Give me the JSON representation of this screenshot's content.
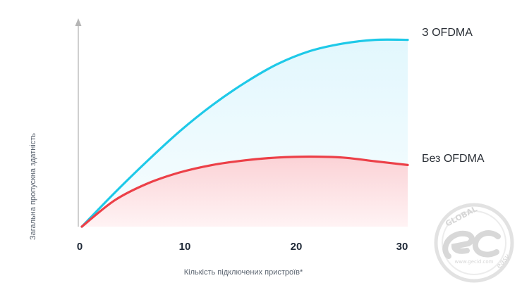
{
  "chart_data": {
    "type": "area",
    "x": [
      0,
      3,
      6,
      9,
      12,
      15,
      18,
      21,
      24,
      27,
      30
    ],
    "series": [
      {
        "name": "З OFDMA",
        "color": "#1ec9e8",
        "values": [
          0,
          18,
          35,
          51,
          65,
          77,
          87,
          94,
          98,
          100,
          100
        ]
      },
      {
        "name": "Без OFDMA",
        "color": "#ec4048",
        "values": [
          0,
          14,
          23,
          29,
          33,
          35.5,
          37,
          37.5,
          37,
          35,
          33
        ]
      }
    ],
    "xticks": [
      "0",
      "10",
      "20",
      "30"
    ],
    "xlim": [
      0,
      30
    ],
    "ylim": [
      0,
      104
    ],
    "xlabel": "Кількість підключених пристроїв*",
    "ylabel": "Загальна пропускна здатність",
    "grid": false,
    "legend": "inline labels at line ends, right"
  },
  "watermark": {
    "text_top": "GLOBAL",
    "text_bottom": "easy",
    "url": "www.gecid.com"
  }
}
